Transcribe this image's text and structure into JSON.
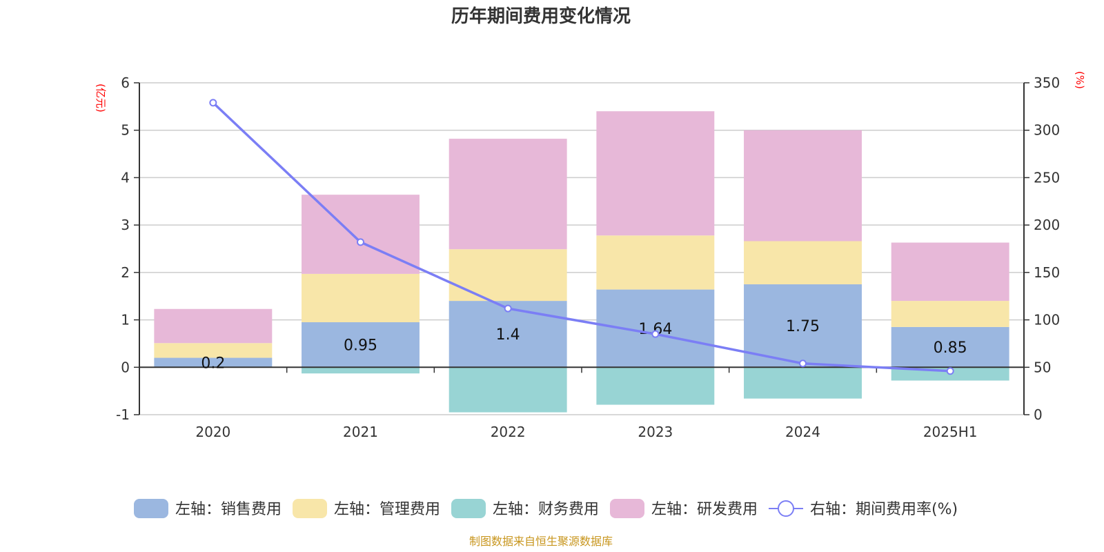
{
  "chart_data": {
    "type": "bar",
    "stacked": true,
    "title": "历年期间费用变化情况",
    "xlabel": "",
    "categories": [
      "2020",
      "2021",
      "2022",
      "2023",
      "2024",
      "2025H1"
    ],
    "left_axis": {
      "unit_label": "(亿元)",
      "range": [
        -1,
        6
      ],
      "ticks": [
        "-1",
        "0",
        "1",
        "2",
        "3",
        "4",
        "5",
        "6"
      ]
    },
    "right_axis": {
      "unit_label": "(%)",
      "range": [
        0,
        350
      ],
      "ticks": [
        "0",
        "50",
        "100",
        "150",
        "200",
        "250",
        "300",
        "350"
      ]
    },
    "grid": true,
    "series": [
      {
        "name": "左轴：销售费用",
        "axis": "left",
        "type": "bar",
        "color": "#9bb7e0",
        "values": [
          0.2,
          0.95,
          1.4,
          1.64,
          1.75,
          0.85
        ],
        "labels": [
          "0.2",
          "0.95",
          "1.4",
          "1.64",
          "1.75",
          "0.85"
        ]
      },
      {
        "name": "左轴：管理费用",
        "axis": "left",
        "type": "bar",
        "color": "#f8e6a9",
        "values": [
          0.31,
          1.02,
          1.09,
          1.14,
          0.91,
          0.55
        ]
      },
      {
        "name": "左轴：财务费用",
        "axis": "left",
        "type": "bar",
        "color": "#98d4d4",
        "values": [
          -0.01,
          -0.13,
          -0.95,
          -0.79,
          -0.66,
          -0.28
        ]
      },
      {
        "name": "左轴：研发费用",
        "axis": "left",
        "type": "bar",
        "color": "#e7b8d8",
        "values": [
          0.72,
          1.67,
          2.33,
          2.62,
          2.34,
          1.23
        ]
      },
      {
        "name": "右轴：期间费用率(%)",
        "axis": "right",
        "type": "line",
        "color": "#7b7ef5",
        "values": [
          329,
          182,
          112,
          85,
          54,
          46
        ]
      }
    ],
    "legend_position": "bottom"
  },
  "source_note": "制图数据来自恒生聚源数据库"
}
